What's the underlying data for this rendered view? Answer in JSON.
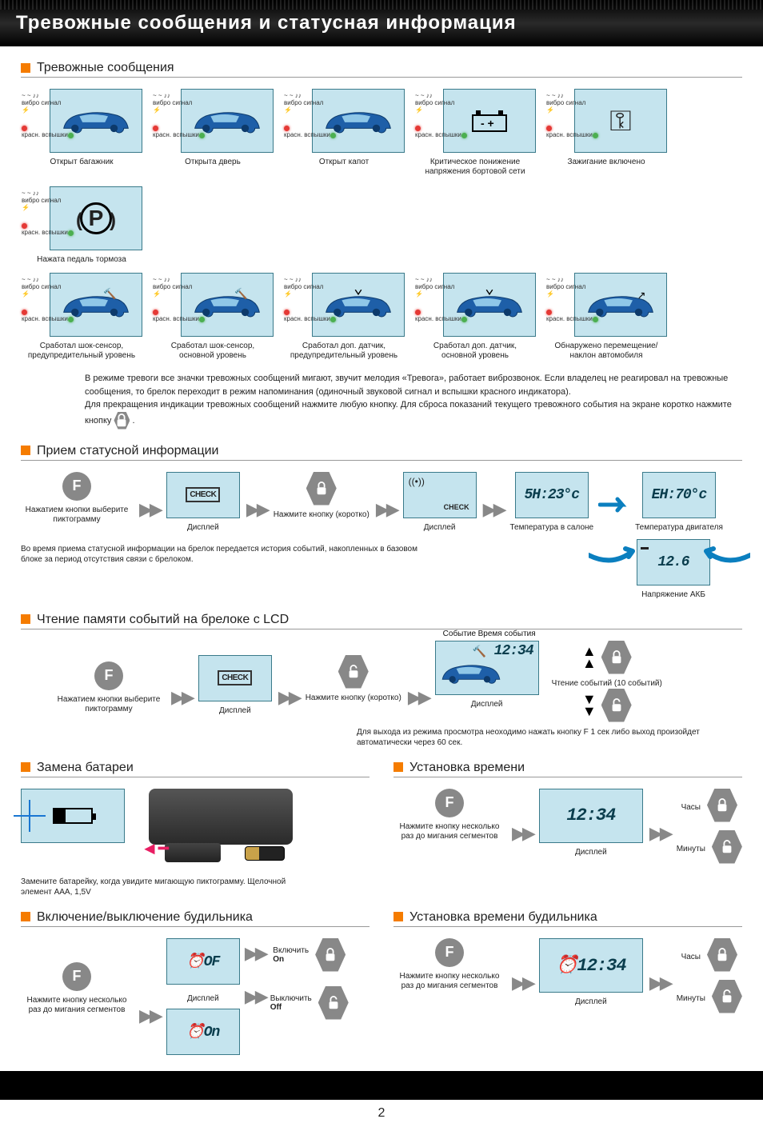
{
  "header": "Тревожные сообщения и статусная информация",
  "pageNumber": "2",
  "colors": {
    "accent": "#f57c00",
    "lcd": "#c5e4ee",
    "lcdBorder": "#3a7a8a",
    "arrowBlue": "#0b7fbf",
    "grey": "#888"
  },
  "sections": {
    "alarms": {
      "title": "Тревожные сообщения",
      "sideLabel": {
        "top": "вибро\nсигнал",
        "bottom": "красн.\nвспышки",
        "wave": "~ ~",
        "note": "♪♪"
      },
      "row1": [
        {
          "caption": "Открыт багажник",
          "type": "car"
        },
        {
          "caption": "Открыта дверь",
          "type": "car"
        },
        {
          "caption": "Открыт капот",
          "type": "car"
        },
        {
          "caption": "Критическое понижение напряжения бортовой сети",
          "type": "battery"
        },
        {
          "caption": "Зажигание включено",
          "type": "key"
        },
        {
          "caption": "Нажата педаль тормоза",
          "type": "brake"
        }
      ],
      "row2": [
        {
          "caption": "Сработал шок-сенсор, предупредительный уровень",
          "type": "car-shock"
        },
        {
          "caption": "Сработал шок-сенсор, основной уровень",
          "type": "car-shock"
        },
        {
          "caption": "Сработал доп. датчик, предупредительный уровень",
          "type": "car-sensor"
        },
        {
          "caption": "Сработал доп. датчик, основной уровень",
          "type": "car-sensor"
        },
        {
          "caption": "Обнаружено перемещение/наклон автомобиля",
          "type": "car-tilt"
        }
      ],
      "paragraph": "В режиме тревоги все значки тревожных сообщений мигают, звучит мелодия «Тревога», работает виброзвонок. Если владелец не реагировал на тревожные сообщения, то брелок переходит в режим напоминания (одиночный звуковой сигнал и вспышки красного индикатора).\nДля прекращения индикации тревожных сообщений нажмите любую кнопку. Для сброса показаний текущего тревожного события на экране коротко нажмите кнопку 🔒 ."
    },
    "status": {
      "title": "Прием статусной информации",
      "steps": {
        "f": "F",
        "fCaption": "Нажатием кнопки выберите пиктограмму",
        "check": "CHECK",
        "disp": "Дисплей",
        "pressShort": "Нажмите кнопку (коротко)",
        "temp1": {
          "value": "5H:23°c",
          "caption": "Температура в салоне"
        },
        "temp2": {
          "value": "EH:70°c",
          "caption": "Температура двигателя"
        },
        "volt": {
          "value": "12.6",
          "caption": "Напряжение АКБ"
        }
      },
      "note": "Во время приема статусной информации на брелок передается история событий, накопленных в базовом блоке за период отсутствия связи с брелоком."
    },
    "events": {
      "title": "Чтение памяти событий на брелоке с LCD",
      "labels": {
        "event": "Событие",
        "time": "Время события",
        "timeVal": "12:34",
        "reading": "Чтение событий (10 событий)"
      },
      "fCaption": "Нажатием кнопки выберите пиктограмму",
      "disp": "Дисплей",
      "pressShort": "Нажмите кнопку (коротко)",
      "exitNote": "Для выхода из режима просмотра неоходимо нажать кнопку  F  1 сек либо выход произойдет автоматически через 60 сек."
    },
    "battery": {
      "title": "Замена батареи",
      "note": "Замените батарейку, когда увидите мигающую пиктограмму. Щелочной элемент ААА, 1,5V"
    },
    "setTime": {
      "title": "Установка времени",
      "pressMulti": "Нажмите кнопку несколько раз до мигания сегментов",
      "timeVal": "12:34",
      "disp": "Дисплей",
      "hours": "Часы",
      "minutes": "Минуты"
    },
    "alarmOnOff": {
      "title": "Включение/выключение будильника",
      "on": {
        "ru": "Включить",
        "en": "On",
        "val": "OF"
      },
      "off": {
        "ru": "Выключить",
        "en": "Off",
        "val": "On"
      },
      "pressMulti": "Нажмите кнопку несколько раз до мигания сегментов",
      "disp": "Дисплей"
    },
    "alarmTime": {
      "title": "Установка времени будильника",
      "timeVal": "12:34",
      "disp": "Дисплей",
      "pressMulti": "Нажмите кнопку несколько раз до мигания сегментов",
      "hours": "Часы",
      "minutes": "Минуты"
    }
  }
}
